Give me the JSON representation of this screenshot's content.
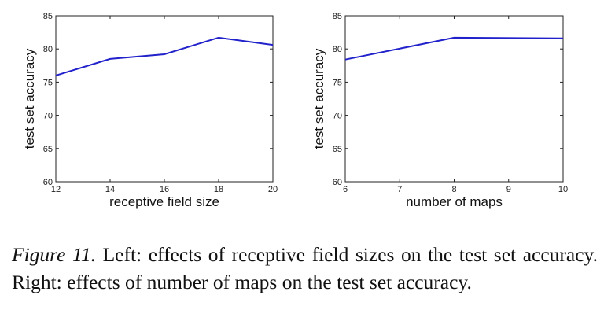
{
  "chart_data": [
    {
      "type": "line",
      "xlabel": "receptive field size",
      "ylabel": "test set accuracy",
      "x": [
        12,
        14,
        16,
        18,
        20
      ],
      "values": [
        76.0,
        78.5,
        79.2,
        81.7,
        80.6
      ],
      "xlim": [
        12,
        20
      ],
      "ylim": [
        60,
        85
      ],
      "xticks": [
        12,
        14,
        16,
        18,
        20
      ],
      "yticks": [
        60,
        65,
        70,
        75,
        80,
        85
      ],
      "grid": false,
      "line_color": "#2222cc"
    },
    {
      "type": "line",
      "xlabel": "number of maps",
      "ylabel": "test set accuracy",
      "x": [
        6,
        8,
        10
      ],
      "values": [
        78.4,
        81.7,
        81.6
      ],
      "xlim": [
        6,
        10
      ],
      "ylim": [
        60,
        85
      ],
      "xticks": [
        6,
        7,
        8,
        9,
        10
      ],
      "yticks": [
        60,
        65,
        70,
        75,
        80,
        85
      ],
      "grid": false,
      "line_color": "#2222cc"
    }
  ],
  "caption": {
    "label": "Figure 11.",
    "text": "Left: effects of receptive field sizes on the test set accuracy. Right: effects of number of maps on the test set accuracy."
  }
}
